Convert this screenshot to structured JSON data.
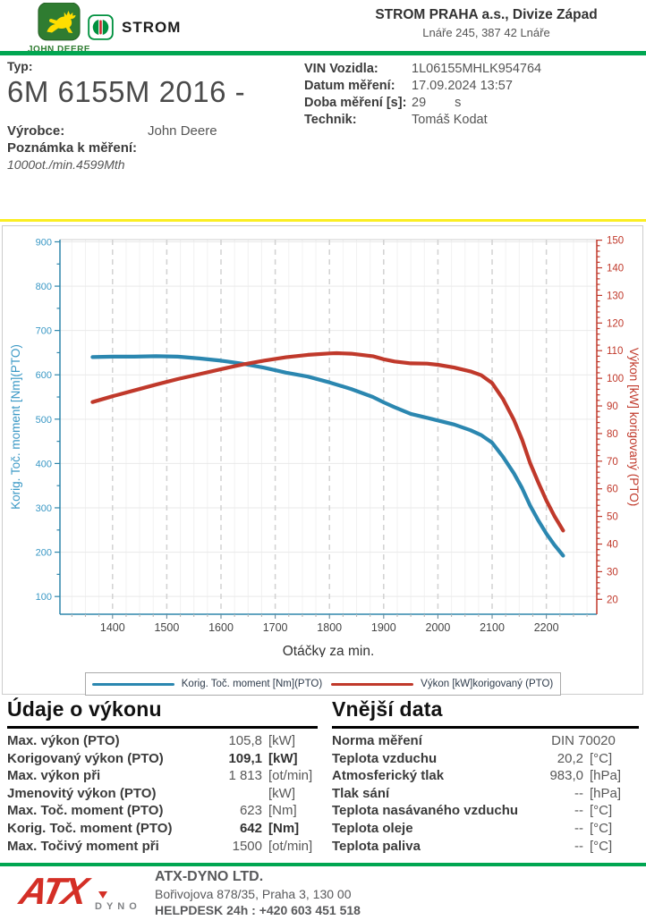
{
  "header": {
    "john_deere_logo_text": "JOHN DEERE",
    "strom_logo_text": "STROM",
    "company_name": "STROM PRAHA a.s., Divize Západ",
    "company_address": "Lnáře 245, 387 42 Lnáře"
  },
  "vehicle_info": {
    "typ_label": "Typ:",
    "typ_value": "6M 6155M 2016 -",
    "vyrobce_label": "Výrobce:",
    "vyrobce_value": "John Deere",
    "poznamka_label": "Poznámka k měření:",
    "poznamka_value": "1000ot./min.4599Mth",
    "fields": [
      {
        "label": "VIN Vozidla:",
        "value": "1L06155MHLK954764",
        "suffix": ""
      },
      {
        "label": "Datum měření:",
        "value": "17.09.2024 13:57",
        "suffix": ""
      },
      {
        "label": "Doba měření [s]:",
        "value": "29",
        "suffix": "s"
      },
      {
        "label": "Technik:",
        "value": "Tomáš Kodat",
        "suffix": ""
      }
    ]
  },
  "chart_data": {
    "type": "line",
    "xlabel": "Otáčky za min.",
    "x_axis": {
      "plot_min": 1303,
      "plot_max": 2293,
      "tick_min": 1400,
      "tick_max": 2200,
      "tick_step": 100,
      "minor_step": 25
    },
    "left_axis": {
      "label": "Korig. Toč. moment [Nm](PTO)",
      "plot_min": 60,
      "plot_max": 905,
      "tick_min": 100,
      "tick_max": 900,
      "tick_step": 100,
      "minor_step": 50,
      "color": "#2e86ab",
      "label_color": "#3a98c5"
    },
    "right_axis": {
      "label": "Výkon [kW] korigovaný (PTO)",
      "plot_min": 14.6,
      "plot_max": 150.2,
      "tick_min": 20,
      "tick_max": 150,
      "tick_step": 10,
      "minor_step": 2,
      "color": "#c0392b",
      "label_color": "#c0392b"
    },
    "grid": true,
    "legend_position": "bottom",
    "series": [
      {
        "name": "Korig. Toč. moment [Nm](PTO)",
        "axis": "left",
        "color": "#2b87b0",
        "points": [
          [
            1363,
            640
          ],
          [
            1400,
            641
          ],
          [
            1440,
            641
          ],
          [
            1480,
            642
          ],
          [
            1520,
            641
          ],
          [
            1560,
            637
          ],
          [
            1600,
            632
          ],
          [
            1640,
            625
          ],
          [
            1680,
            616
          ],
          [
            1720,
            605
          ],
          [
            1760,
            596
          ],
          [
            1800,
            583
          ],
          [
            1840,
            568
          ],
          [
            1880,
            550
          ],
          [
            1900,
            538
          ],
          [
            1920,
            527
          ],
          [
            1950,
            512
          ],
          [
            1980,
            503
          ],
          [
            2000,
            497
          ],
          [
            2030,
            488
          ],
          [
            2060,
            475
          ],
          [
            2080,
            464
          ],
          [
            2100,
            447
          ],
          [
            2120,
            415
          ],
          [
            2140,
            378
          ],
          [
            2155,
            345
          ],
          [
            2170,
            305
          ],
          [
            2185,
            272
          ],
          [
            2200,
            242
          ],
          [
            2215,
            216
          ],
          [
            2231,
            192
          ]
        ]
      },
      {
        "name": "Výkon [kW]korigovaný (PTO)",
        "axis": "right",
        "color": "#c0392b",
        "points": [
          [
            1363,
            91.4
          ],
          [
            1400,
            93.5
          ],
          [
            1440,
            95.6
          ],
          [
            1480,
            97.7
          ],
          [
            1520,
            99.7
          ],
          [
            1560,
            101.5
          ],
          [
            1600,
            103.3
          ],
          [
            1640,
            105.0
          ],
          [
            1680,
            106.4
          ],
          [
            1720,
            107.6
          ],
          [
            1760,
            108.5
          ],
          [
            1800,
            109.0
          ],
          [
            1813,
            109.1
          ],
          [
            1840,
            108.9
          ],
          [
            1880,
            108.0
          ],
          [
            1900,
            106.9
          ],
          [
            1920,
            106.1
          ],
          [
            1950,
            105.4
          ],
          [
            1980,
            105.3
          ],
          [
            2000,
            104.9
          ],
          [
            2030,
            103.9
          ],
          [
            2060,
            102.5
          ],
          [
            2080,
            101.1
          ],
          [
            2100,
            98.3
          ],
          [
            2120,
            92.5
          ],
          [
            2140,
            85.0
          ],
          [
            2155,
            77.9
          ],
          [
            2170,
            69.3
          ],
          [
            2185,
            62.4
          ],
          [
            2200,
            55.8
          ],
          [
            2215,
            50.1
          ],
          [
            2231,
            44.9
          ]
        ]
      }
    ]
  },
  "tables": {
    "performance": {
      "title": "Údaje o výkonu",
      "rows": [
        {
          "label": "Max. výkon (PTO)",
          "value": "105,8",
          "unit": "[kW]",
          "bold": false
        },
        {
          "label": "Korigovaný výkon (PTO)",
          "value": "109,1",
          "unit": "[kW]",
          "bold": true
        },
        {
          "label": "Max. výkon při",
          "value": "1 813",
          "unit": "[ot/min]",
          "bold": false
        },
        {
          "label": "Jmenovitý výkon (PTO)",
          "value": "",
          "unit": "[kW]",
          "bold": false
        },
        {
          "label": "Max. Toč. moment (PTO)",
          "value": "623",
          "unit": "[Nm]",
          "bold": false
        },
        {
          "label": "Korig. Toč. moment (PTO)",
          "value": "642",
          "unit": "[Nm]",
          "bold": true
        },
        {
          "label": "Max. Točivý moment při",
          "value": "1500",
          "unit": "[ot/min]",
          "bold": false
        }
      ]
    },
    "external": {
      "title": "Vnější data",
      "rows": [
        {
          "label": "Norma měření",
          "value": "DIN 70020",
          "unit": "",
          "bold": false
        },
        {
          "label": "Teplota vzduchu",
          "value": "20,2",
          "unit": "[°C]",
          "bold": false
        },
        {
          "label": "Atmosferický tlak",
          "value": "983,0",
          "unit": "[hPa]",
          "bold": false
        },
        {
          "label": "Tlak sání",
          "value": "--",
          "unit": "[hPa]",
          "bold": false
        },
        {
          "label": "Teplota nasávaného vzduchu",
          "value": "--",
          "unit": "[°C]",
          "bold": false
        },
        {
          "label": "Teplota oleje",
          "value": "--",
          "unit": "[°C]",
          "bold": false
        },
        {
          "label": "Teplota paliva",
          "value": "--",
          "unit": "[°C]",
          "bold": false
        }
      ]
    }
  },
  "footer": {
    "logo_main": "ATX",
    "logo_sub": "DYNO",
    "company": "ATX-DYNO LTD.",
    "address": "Bořivojova 878/35, Praha 3, 130 00",
    "helpdesk": "HELPDESK 24h : +420 603 451 518"
  },
  "colors": {
    "brand_green": "#00A651",
    "accent_yellow": "#FBEE23",
    "torque_blue": "#2b87b0",
    "power_red": "#c0392b",
    "footer_gray": "#58595b",
    "atx_red": "#d42f26"
  }
}
